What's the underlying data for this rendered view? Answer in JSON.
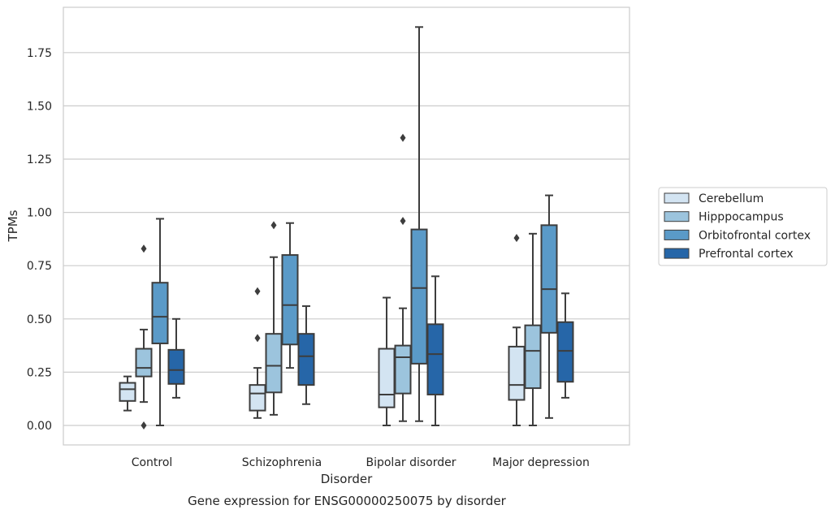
{
  "chart_data": {
    "type": "box",
    "title": "",
    "caption": "Gene expression for ENSG00000250075 by disorder",
    "xlabel": "Disorder",
    "ylabel": "TPMs",
    "ylim": [
      -0.09,
      1.97
    ],
    "yticks": [
      "0.00",
      "0.25",
      "0.50",
      "0.75",
      "1.00",
      "1.25",
      "1.50",
      "1.75"
    ],
    "grid": "horizontal",
    "legend_position": "right, outside plot",
    "categories": [
      "Control",
      "Schizophrenia",
      "Bipolar disorder",
      "Major depression"
    ],
    "series": [
      {
        "name": "Cerebellum",
        "color": "#d3e4f2",
        "boxes": [
          {
            "whisker_low": 0.07,
            "q1": 0.115,
            "median": 0.17,
            "q3": 0.2,
            "whisker_high": 0.23,
            "outliers": []
          },
          {
            "whisker_low": 0.035,
            "q1": 0.07,
            "median": 0.15,
            "q3": 0.19,
            "whisker_high": 0.27,
            "outliers": [
              0.41,
              0.63
            ]
          },
          {
            "whisker_low": 0.0,
            "q1": 0.085,
            "median": 0.145,
            "q3": 0.36,
            "whisker_high": 0.6,
            "outliers": []
          },
          {
            "whisker_low": 0.0,
            "q1": 0.12,
            "median": 0.19,
            "q3": 0.37,
            "whisker_high": 0.46,
            "outliers": [
              0.88
            ]
          }
        ]
      },
      {
        "name": "Hipppocampus",
        "color": "#9cc4dd",
        "boxes": [
          {
            "whisker_low": 0.11,
            "q1": 0.23,
            "median": 0.27,
            "q3": 0.36,
            "whisker_high": 0.45,
            "outliers": [
              0.0,
              0.83
            ]
          },
          {
            "whisker_low": 0.05,
            "q1": 0.155,
            "median": 0.28,
            "q3": 0.43,
            "whisker_high": 0.79,
            "outliers": [
              0.94
            ]
          },
          {
            "whisker_low": 0.02,
            "q1": 0.15,
            "median": 0.32,
            "q3": 0.375,
            "whisker_high": 0.55,
            "outliers": [
              0.96,
              1.35
            ]
          },
          {
            "whisker_low": 0.0,
            "q1": 0.175,
            "median": 0.35,
            "q3": 0.47,
            "whisker_high": 0.9,
            "outliers": []
          }
        ]
      },
      {
        "name": "Orbitofrontal cortex",
        "color": "#5a9ac8",
        "boxes": [
          {
            "whisker_low": 0.0,
            "q1": 0.385,
            "median": 0.51,
            "q3": 0.67,
            "whisker_high": 0.97,
            "outliers": []
          },
          {
            "whisker_low": 0.27,
            "q1": 0.38,
            "median": 0.565,
            "q3": 0.8,
            "whisker_high": 0.95,
            "outliers": []
          },
          {
            "whisker_low": 0.02,
            "q1": 0.29,
            "median": 0.645,
            "q3": 0.92,
            "whisker_high": 1.87,
            "outliers": []
          },
          {
            "whisker_low": 0.035,
            "q1": 0.435,
            "median": 0.64,
            "q3": 0.94,
            "whisker_high": 1.08,
            "outliers": []
          }
        ]
      },
      {
        "name": "Prefrontal cortex",
        "color": "#2666a8",
        "boxes": [
          {
            "whisker_low": 0.13,
            "q1": 0.195,
            "median": 0.26,
            "q3": 0.355,
            "whisker_high": 0.5,
            "outliers": []
          },
          {
            "whisker_low": 0.1,
            "q1": 0.19,
            "median": 0.325,
            "q3": 0.43,
            "whisker_high": 0.56,
            "outliers": []
          },
          {
            "whisker_low": 0.0,
            "q1": 0.145,
            "median": 0.335,
            "q3": 0.475,
            "whisker_high": 0.7,
            "outliers": []
          },
          {
            "whisker_low": 0.13,
            "q1": 0.205,
            "median": 0.35,
            "q3": 0.485,
            "whisker_high": 0.62,
            "outliers": []
          }
        ]
      }
    ]
  }
}
